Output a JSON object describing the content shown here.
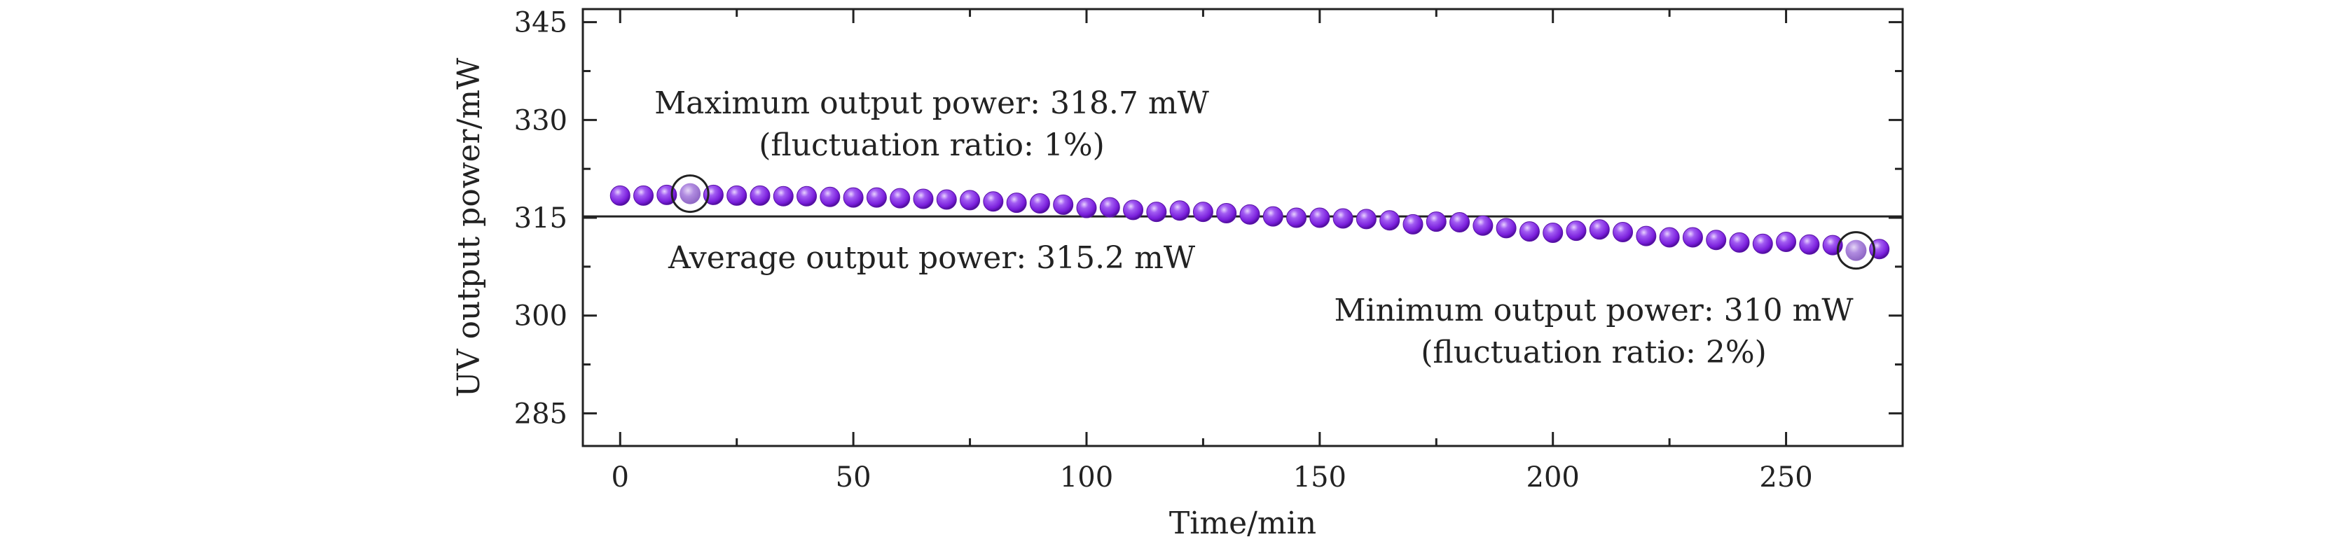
{
  "chart_data": {
    "type": "scatter",
    "xlabel": "Time/min",
    "ylabel": "UV output power/mW",
    "xlim": [
      -8,
      275
    ],
    "ylim": [
      280,
      347
    ],
    "xticks": [
      0,
      50,
      100,
      150,
      200,
      250
    ],
    "yticks": [
      285,
      300,
      315,
      330,
      345
    ],
    "x_minor_ticks": [
      25,
      75,
      125,
      175,
      225
    ],
    "y_minor_ticks": [
      292.5,
      307.5,
      322.5,
      337.5
    ],
    "grid": false,
    "legend": "none",
    "marker_color": "#8a2be2",
    "series": [
      {
        "x": [
          0,
          5,
          10,
          15,
          20,
          25,
          30,
          35,
          40,
          45,
          50,
          55,
          60,
          65,
          70,
          75,
          80,
          85,
          90,
          95,
          100,
          105,
          110,
          115,
          120,
          125,
          130,
          135,
          140,
          145,
          150,
          155,
          160,
          165,
          170,
          175,
          180,
          185,
          190,
          195,
          200,
          205,
          210,
          215,
          220,
          225,
          230,
          235,
          240,
          245,
          250,
          255,
          260,
          265,
          270
        ],
        "y": [
          318.4,
          318.4,
          318.5,
          318.7,
          318.5,
          318.4,
          318.4,
          318.3,
          318.3,
          318.2,
          318.1,
          318.1,
          318.0,
          317.9,
          317.8,
          317.7,
          317.5,
          317.3,
          317.2,
          317.0,
          316.5,
          316.6,
          316.2,
          315.9,
          316.1,
          315.9,
          315.7,
          315.5,
          315.2,
          315.0,
          315.0,
          314.9,
          314.8,
          314.6,
          314.0,
          314.4,
          314.3,
          313.8,
          313.4,
          312.9,
          312.7,
          313.0,
          313.2,
          312.8,
          312.2,
          312.0,
          312.0,
          311.6,
          311.2,
          311.0,
          311.3,
          310.9,
          310.8,
          310.0,
          310.2
        ]
      }
    ],
    "reference_line": {
      "y": 315.2
    },
    "highlighted_points": [
      {
        "x": 15,
        "y": 318.7
      },
      {
        "x": 265,
        "y": 310.0
      }
    ],
    "annotations": {
      "max_line1": "Maximum output power: 318.7 mW",
      "max_line2": "(fluctuation ratio: 1%)",
      "avg": "Average output power: 315.2 mW",
      "min_line1": "Minimum output power: 310 mW",
      "min_line2": "(fluctuation ratio: 2%)"
    }
  }
}
